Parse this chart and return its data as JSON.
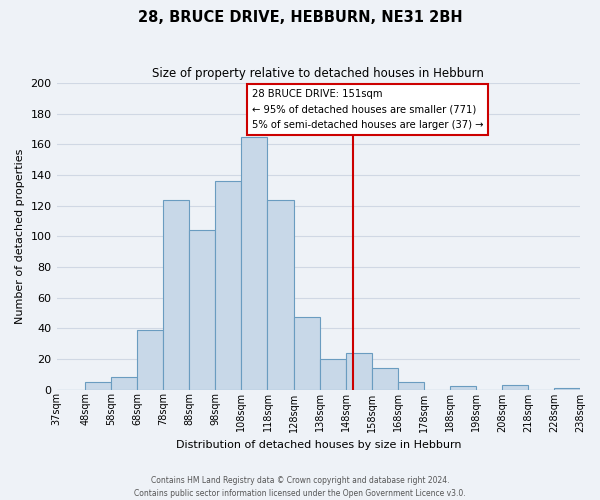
{
  "title": "28, BRUCE DRIVE, HEBBURN, NE31 2BH",
  "subtitle": "Size of property relative to detached houses in Hebburn",
  "xlabel": "Distribution of detached houses by size in Hebburn",
  "ylabel": "Number of detached properties",
  "bin_edges": [
    37,
    48,
    58,
    68,
    78,
    88,
    98,
    108,
    118,
    128,
    138,
    148,
    158,
    168,
    178,
    188,
    198,
    208,
    218,
    228,
    238
  ],
  "bin_labels": [
    "37sqm",
    "48sqm",
    "58sqm",
    "68sqm",
    "78sqm",
    "88sqm",
    "98sqm",
    "108sqm",
    "118sqm",
    "128sqm",
    "138sqm",
    "148sqm",
    "158sqm",
    "168sqm",
    "178sqm",
    "188sqm",
    "198sqm",
    "208sqm",
    "218sqm",
    "228sqm",
    "238sqm"
  ],
  "counts": [
    0,
    5,
    8,
    39,
    124,
    104,
    136,
    165,
    124,
    47,
    20,
    24,
    14,
    5,
    0,
    2,
    0,
    3,
    0,
    1
  ],
  "bar_color": "#c8d8e8",
  "bar_edgecolor": "#6a9cc0",
  "vline_x": 151,
  "vline_color": "#cc0000",
  "ylim": [
    0,
    200
  ],
  "yticks": [
    0,
    20,
    40,
    60,
    80,
    100,
    120,
    140,
    160,
    180,
    200
  ],
  "annotation_title": "28 BRUCE DRIVE: 151sqm",
  "annotation_line1": "← 95% of detached houses are smaller (771)",
  "annotation_line2": "5% of semi-detached houses are larger (37) →",
  "annotation_box_edgecolor": "#cc0000",
  "footer_line1": "Contains HM Land Registry data © Crown copyright and database right 2024.",
  "footer_line2": "Contains public sector information licensed under the Open Government Licence v3.0.",
  "bg_color": "#eef2f7",
  "grid_color": "#d0d8e4"
}
